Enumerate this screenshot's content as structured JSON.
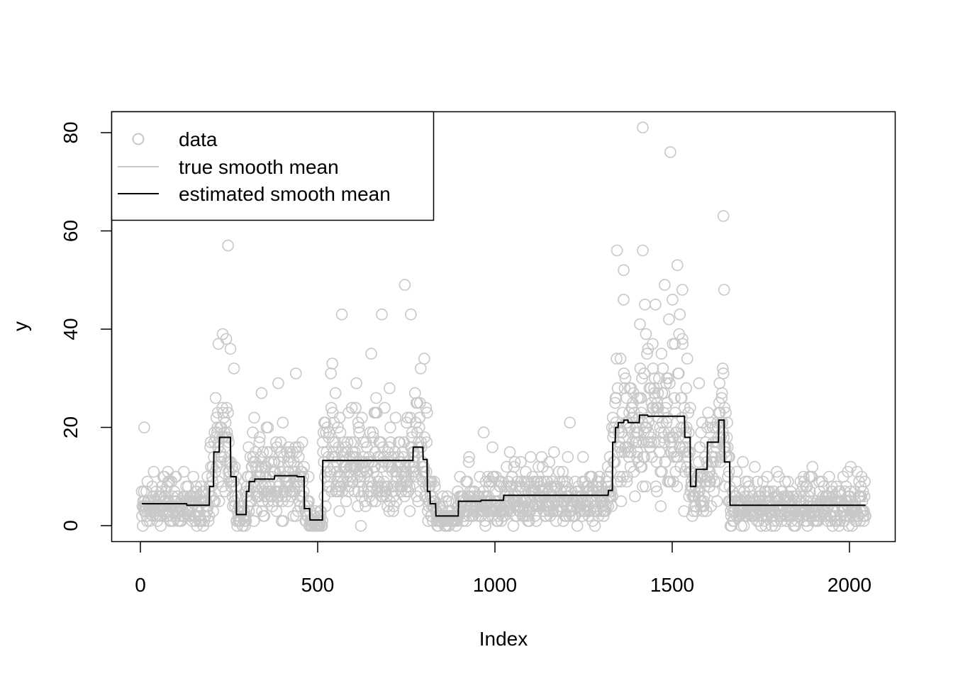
{
  "chart_data": {
    "type": "scatter",
    "title": "",
    "xlabel": "Index",
    "ylabel": "y",
    "xlim": [
      -84,
      2132
    ],
    "ylim": [
      -3.2,
      84.2
    ],
    "x_ticks": [
      "0",
      "500",
      "1000",
      "1500",
      "2000"
    ],
    "y_ticks": [
      "0",
      "20",
      "40",
      "60",
      "80"
    ],
    "grid": false,
    "legend_position": "top-left",
    "legend": {
      "data": "data",
      "true": "true smooth mean",
      "estimated": "estimated smooth mean"
    },
    "colors": {
      "data": "#c8c8c8",
      "true_mean": "#c8c8c8",
      "estimated_mean": "#000000"
    },
    "n_points": 2048,
    "segments": [
      {
        "start": 1,
        "end": 128,
        "true_mean": 4.5,
        "estimated_mean": 4.5
      },
      {
        "start": 129,
        "end": 192,
        "true_mean": 4.2,
        "estimated_mean": 4.2
      },
      {
        "start": 193,
        "end": 204,
        "true_mean": 8,
        "estimated_mean": 8
      },
      {
        "start": 205,
        "end": 220,
        "true_mean": 15,
        "estimated_mean": 15
      },
      {
        "start": 221,
        "end": 252,
        "true_mean": 18,
        "estimated_mean": 18
      },
      {
        "start": 253,
        "end": 268,
        "true_mean": 10,
        "estimated_mean": 10
      },
      {
        "start": 269,
        "end": 296,
        "true_mean": 2.3,
        "estimated_mean": 2.3
      },
      {
        "start": 297,
        "end": 304,
        "true_mean": 7,
        "estimated_mean": 7
      },
      {
        "start": 305,
        "end": 320,
        "true_mean": 9,
        "estimated_mean": 9
      },
      {
        "start": 321,
        "end": 376,
        "true_mean": 9.5,
        "estimated_mean": 9.5
      },
      {
        "start": 377,
        "end": 440,
        "true_mean": 10.2,
        "estimated_mean": 10.2
      },
      {
        "start": 441,
        "end": 460,
        "true_mean": 10,
        "estimated_mean": 10
      },
      {
        "start": 461,
        "end": 476,
        "true_mean": 3.5,
        "estimated_mean": 3.5
      },
      {
        "start": 477,
        "end": 512,
        "true_mean": 1.2,
        "estimated_mean": 1.2
      },
      {
        "start": 513,
        "end": 768,
        "true_mean": 13.3,
        "estimated_mean": 13.3
      },
      {
        "start": 769,
        "end": 796,
        "true_mean": 16,
        "estimated_mean": 16
      },
      {
        "start": 797,
        "end": 808,
        "true_mean": 13.5,
        "estimated_mean": 13.5
      },
      {
        "start": 809,
        "end": 816,
        "true_mean": 7,
        "estimated_mean": 7
      },
      {
        "start": 817,
        "end": 832,
        "true_mean": 4.5,
        "estimated_mean": 4.5
      },
      {
        "start": 833,
        "end": 896,
        "true_mean": 2,
        "estimated_mean": 2
      },
      {
        "start": 897,
        "end": 960,
        "true_mean": 5,
        "estimated_mean": 5
      },
      {
        "start": 961,
        "end": 1024,
        "true_mean": 5.2,
        "estimated_mean": 5.2
      },
      {
        "start": 1025,
        "end": 1320,
        "true_mean": 6.2,
        "estimated_mean": 6.2
      },
      {
        "start": 1321,
        "end": 1332,
        "true_mean": 7.2,
        "estimated_mean": 7.2
      },
      {
        "start": 1333,
        "end": 1340,
        "true_mean": 17,
        "estimated_mean": 17
      },
      {
        "start": 1341,
        "end": 1348,
        "true_mean": 20,
        "estimated_mean": 20
      },
      {
        "start": 1349,
        "end": 1364,
        "true_mean": 21,
        "estimated_mean": 21
      },
      {
        "start": 1365,
        "end": 1376,
        "true_mean": 21.5,
        "estimated_mean": 21.5
      },
      {
        "start": 1377,
        "end": 1408,
        "true_mean": 21,
        "estimated_mean": 21
      },
      {
        "start": 1409,
        "end": 1432,
        "true_mean": 22.5,
        "estimated_mean": 22.5
      },
      {
        "start": 1433,
        "end": 1536,
        "true_mean": 22.3,
        "estimated_mean": 22.3
      },
      {
        "start": 1537,
        "end": 1552,
        "true_mean": 18,
        "estimated_mean": 18
      },
      {
        "start": 1553,
        "end": 1568,
        "true_mean": 8,
        "estimated_mean": 8
      },
      {
        "start": 1569,
        "end": 1600,
        "true_mean": 11.5,
        "estimated_mean": 11.5
      },
      {
        "start": 1601,
        "end": 1632,
        "true_mean": 17,
        "estimated_mean": 17
      },
      {
        "start": 1633,
        "end": 1648,
        "true_mean": 21.5,
        "estimated_mean": 21.5
      },
      {
        "start": 1649,
        "end": 1664,
        "true_mean": 13,
        "estimated_mean": 13
      },
      {
        "start": 1665,
        "end": 2048,
        "true_mean": 4.2,
        "estimated_mean": 4.2
      }
    ],
    "notable_points": [
      {
        "x": 8,
        "y": 20
      },
      {
        "x": 218,
        "y": 37
      },
      {
        "x": 230,
        "y": 39
      },
      {
        "x": 245,
        "y": 57
      },
      {
        "x": 262,
        "y": 32
      },
      {
        "x": 340,
        "y": 27
      },
      {
        "x": 437,
        "y": 31
      },
      {
        "x": 540,
        "y": 33
      },
      {
        "x": 650,
        "y": 35
      },
      {
        "x": 680,
        "y": 43
      },
      {
        "x": 745,
        "y": 49
      },
      {
        "x": 762,
        "y": 43
      },
      {
        "x": 800,
        "y": 34
      },
      {
        "x": 1364,
        "y": 46
      },
      {
        "x": 1418,
        "y": 81
      },
      {
        "x": 1418,
        "y": 56
      },
      {
        "x": 1480,
        "y": 49
      },
      {
        "x": 1496,
        "y": 76
      },
      {
        "x": 1530,
        "y": 48
      },
      {
        "x": 1646,
        "y": 63
      },
      {
        "x": 1648,
        "y": 48
      }
    ]
  }
}
